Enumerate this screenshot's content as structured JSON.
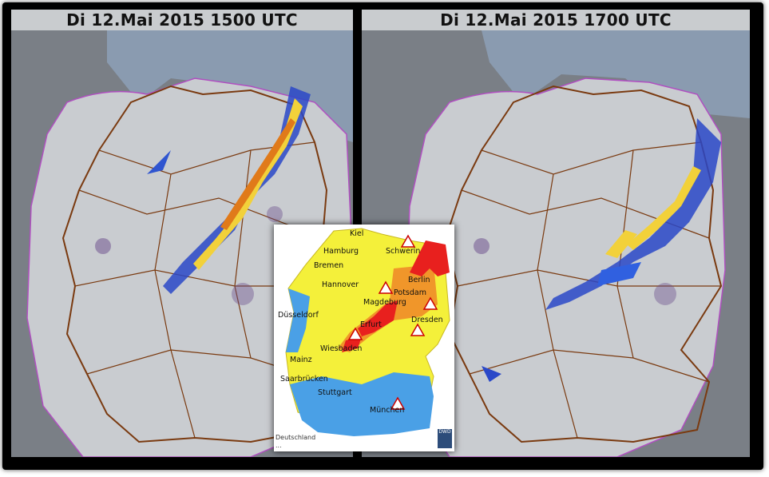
{
  "panels": [
    {
      "title": "Di 12.Mai 2015 1500 UTC"
    },
    {
      "title": "Di 12.Mai 2015 1700 UTC"
    }
  ],
  "warning_map": {
    "cities": [
      "Kiel",
      "Hamburg",
      "Schwerin",
      "Bremen",
      "Hannover",
      "Berlin",
      "Potsdam",
      "Magdeburg",
      "Düsseldorf",
      "Erfurt",
      "Dresden",
      "Wiesbaden",
      "Mainz",
      "Saarbrücken",
      "Stuttgart",
      "München"
    ],
    "footer_line1": "Deutschland",
    "footer_line2": "...",
    "logo_text": "DWD"
  }
}
